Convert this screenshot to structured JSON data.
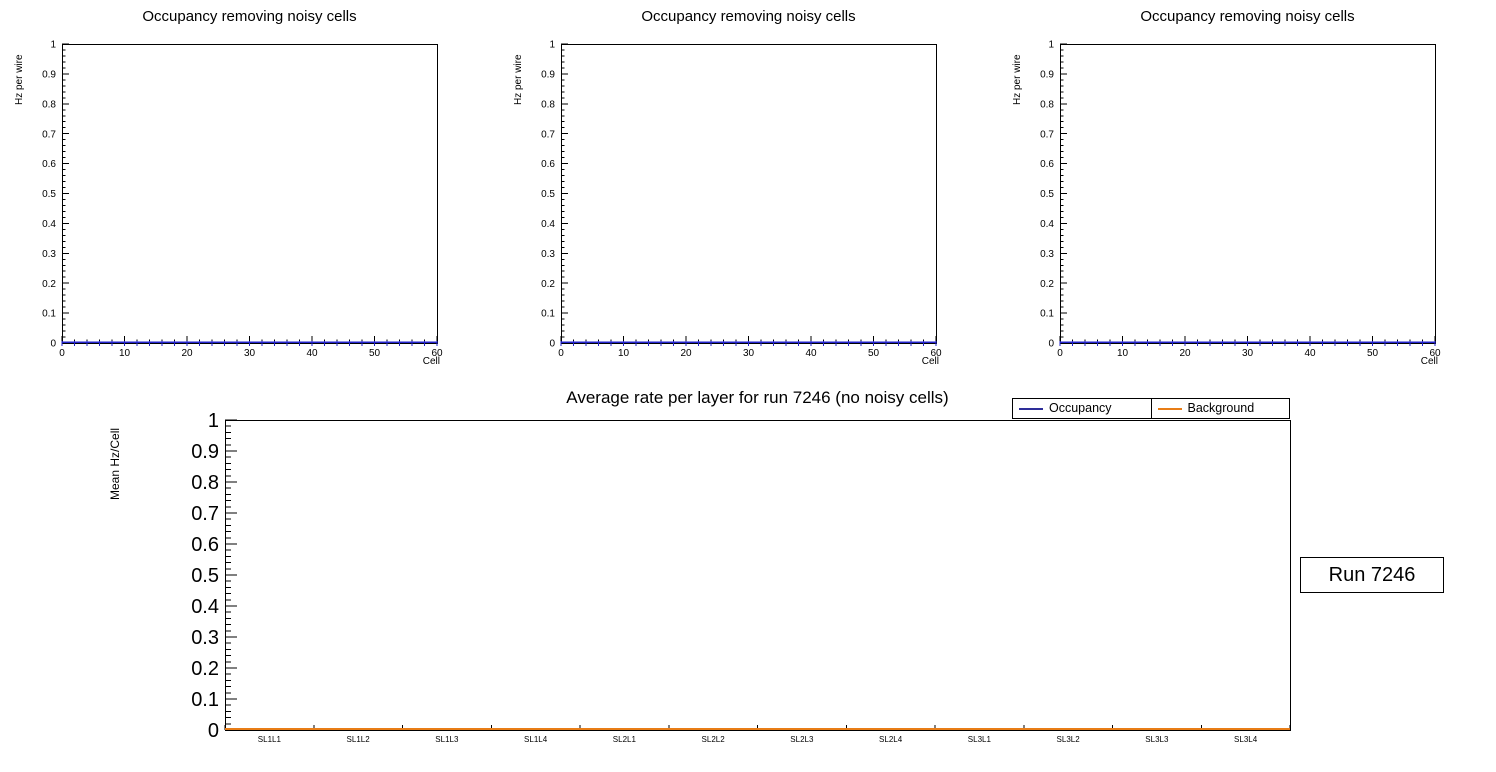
{
  "page": {
    "background": "#ffffff"
  },
  "colors": {
    "axis": "#000000",
    "occupancy_hist": "#2424cc",
    "occupancy_line": "#2e2e99",
    "background_line": "#e87d17"
  },
  "chart_data": [
    {
      "type": "bar",
      "title": "Occupancy removing noisy cells",
      "xlabel": "Cell",
      "ylabel": "Hz per wire",
      "xlim": [
        0,
        60
      ],
      "ylim": [
        0,
        1
      ],
      "xticks": [
        0,
        10,
        20,
        30,
        40,
        50,
        60
      ],
      "x_minor_step": 2,
      "yticks": [
        0,
        0.1,
        0.2,
        0.3,
        0.4,
        0.5,
        0.6,
        0.7,
        0.8,
        0.9,
        1
      ],
      "y_minor_divisions": 5,
      "n_bins": 60,
      "grid": false,
      "series": [
        {
          "name": "Occupancy",
          "color": "#2424cc",
          "constant_value": 0,
          "note": "all 60 cell bins at 0 Hz per wire"
        }
      ]
    },
    {
      "type": "bar",
      "title": "Occupancy removing noisy cells",
      "xlabel": "Cell",
      "ylabel": "Hz per wire",
      "xlim": [
        0,
        60
      ],
      "ylim": [
        0,
        1
      ],
      "xticks": [
        0,
        10,
        20,
        30,
        40,
        50,
        60
      ],
      "x_minor_step": 2,
      "yticks": [
        0,
        0.1,
        0.2,
        0.3,
        0.4,
        0.5,
        0.6,
        0.7,
        0.8,
        0.9,
        1
      ],
      "y_minor_divisions": 5,
      "n_bins": 60,
      "grid": false,
      "series": [
        {
          "name": "Occupancy",
          "color": "#2424cc",
          "constant_value": 0,
          "note": "all 60 cell bins at 0 Hz per wire"
        }
      ]
    },
    {
      "type": "bar",
      "title": "Occupancy removing noisy cells",
      "xlabel": "Cell",
      "ylabel": "Hz per wire",
      "xlim": [
        0,
        60
      ],
      "ylim": [
        0,
        1
      ],
      "xticks": [
        0,
        10,
        20,
        30,
        40,
        50,
        60
      ],
      "x_minor_step": 2,
      "yticks": [
        0,
        0.1,
        0.2,
        0.3,
        0.4,
        0.5,
        0.6,
        0.7,
        0.8,
        0.9,
        1
      ],
      "y_minor_divisions": 5,
      "n_bins": 60,
      "grid": false,
      "series": [
        {
          "name": "Occupancy",
          "color": "#2424cc",
          "constant_value": 0,
          "note": "all 60 cell bins at 0 Hz per wire"
        }
      ]
    },
    {
      "type": "line",
      "title": "Average rate per layer for run 7246 (no noisy cells)",
      "xlabel": "",
      "ylabel": "Mean Hz/Cell",
      "ylim": [
        0,
        1
      ],
      "yticks": [
        0,
        0.1,
        0.2,
        0.3,
        0.4,
        0.5,
        0.6,
        0.7,
        0.8,
        0.9,
        1
      ],
      "y_minor_divisions": 5,
      "categories": [
        "SL1L1",
        "SL1L2",
        "SL1L3",
        "SL1L4",
        "SL2L1",
        "SL2L2",
        "SL2L3",
        "SL2L4",
        "SL3L1",
        "SL3L2",
        "SL3L3",
        "SL3L4"
      ],
      "grid": false,
      "legend": {
        "position": "top-right"
      },
      "annotation": "Run 7246",
      "series": [
        {
          "name": "Occupancy",
          "color": "#2e2e99",
          "values": [
            0,
            0,
            0,
            0,
            0,
            0,
            0,
            0,
            0,
            0,
            0,
            0
          ]
        },
        {
          "name": "Background",
          "color": "#e87d17",
          "values": [
            0,
            0,
            0,
            0,
            0,
            0,
            0,
            0,
            0,
            0,
            0,
            0
          ]
        }
      ]
    }
  ]
}
